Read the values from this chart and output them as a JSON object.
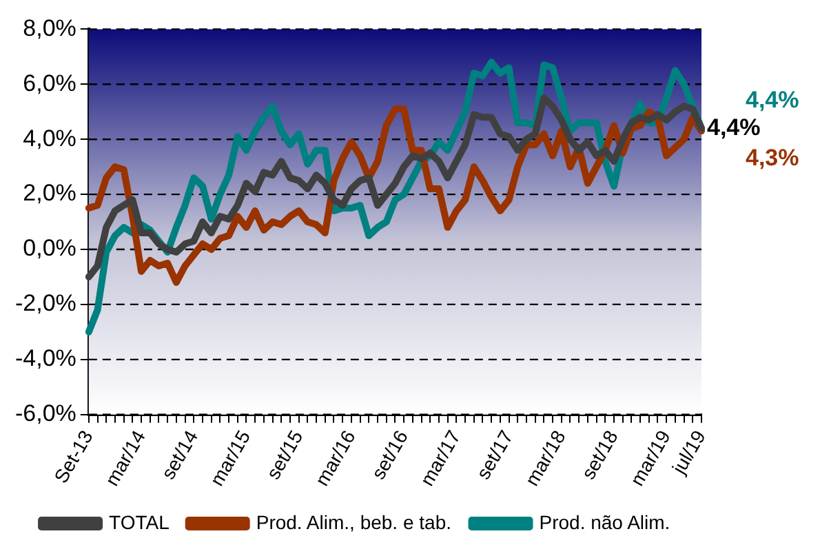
{
  "chart_data": {
    "type": "line",
    "categories": [
      "Set-13",
      null,
      null,
      null,
      null,
      null,
      "mar/14",
      null,
      null,
      null,
      null,
      null,
      "set/14",
      null,
      null,
      null,
      null,
      null,
      "mar/15",
      null,
      null,
      null,
      null,
      null,
      "set/15",
      null,
      null,
      null,
      null,
      null,
      "mar/16",
      null,
      null,
      null,
      null,
      null,
      "set/16",
      null,
      null,
      null,
      null,
      null,
      "mar/17",
      null,
      null,
      null,
      null,
      null,
      "set/17",
      null,
      null,
      null,
      null,
      null,
      "mar/18",
      null,
      null,
      null,
      null,
      null,
      "set/18",
      null,
      null,
      null,
      null,
      null,
      "mar/19",
      null,
      null,
      null,
      "jul/19"
    ],
    "series": [
      {
        "name": "TOTAL",
        "color": "#404040",
        "values": [
          -1.0,
          -0.6,
          0.8,
          1.4,
          1.6,
          1.8,
          0.6,
          0.6,
          0.2,
          0.0,
          -0.1,
          0.2,
          0.3,
          1.0,
          0.6,
          1.2,
          1.1,
          1.6,
          2.4,
          2.1,
          2.8,
          2.7,
          3.2,
          2.6,
          2.5,
          2.2,
          2.7,
          2.4,
          1.8,
          1.6,
          2.2,
          2.5,
          2.6,
          1.6,
          2.0,
          2.4,
          3.0,
          3.4,
          3.3,
          3.5,
          3.2,
          2.6,
          3.2,
          3.8,
          4.9,
          4.8,
          4.8,
          4.2,
          4.1,
          3.6,
          4.0,
          4.2,
          5.5,
          5.2,
          4.7,
          4.0,
          3.6,
          3.9,
          3.4,
          3.6,
          3.2,
          4.0,
          4.6,
          4.8,
          4.7,
          4.9,
          4.7,
          5.0,
          5.2,
          5.1,
          4.4
        ],
        "value_labels": [
          null,
          null,
          null,
          null,
          null,
          null,
          null,
          null,
          null,
          null,
          null,
          null,
          null,
          null,
          null,
          null,
          null,
          null,
          null,
          null,
          null,
          null,
          null,
          null,
          null,
          null,
          null,
          null,
          null,
          null,
          null,
          null,
          null,
          null,
          null,
          null,
          null,
          null,
          null,
          null,
          null,
          null,
          null,
          null,
          null,
          null,
          null,
          null,
          null,
          null,
          null,
          null,
          null,
          null,
          null,
          null,
          null,
          null,
          null,
          null,
          null,
          null,
          null,
          null,
          null,
          null,
          null,
          null,
          null,
          null,
          "4,4%"
        ]
      },
      {
        "name": "Prod. Alim., beb. e tab.",
        "color": "#993300",
        "values": [
          1.5,
          1.6,
          2.6,
          3.0,
          2.9,
          1.2,
          -0.8,
          -0.4,
          -0.6,
          -0.5,
          -1.2,
          -0.6,
          -0.2,
          0.2,
          0.0,
          0.4,
          0.5,
          1.2,
          0.8,
          1.4,
          0.7,
          1.0,
          0.9,
          1.2,
          1.4,
          1.0,
          0.9,
          0.6,
          2.5,
          3.3,
          3.9,
          3.4,
          2.6,
          3.2,
          4.5,
          5.1,
          5.1,
          3.6,
          3.6,
          2.2,
          2.2,
          0.8,
          1.4,
          1.8,
          3.0,
          2.5,
          1.9,
          1.4,
          1.8,
          3.0,
          3.8,
          3.8,
          4.2,
          3.4,
          4.3,
          3.0,
          3.7,
          2.4,
          3.0,
          3.6,
          4.5,
          3.5,
          4.4,
          4.5,
          5.0,
          4.8,
          3.4,
          3.7,
          4.0,
          4.8,
          4.3
        ],
        "value_labels": [
          null,
          null,
          null,
          null,
          null,
          null,
          null,
          null,
          null,
          null,
          null,
          null,
          null,
          null,
          null,
          null,
          null,
          null,
          null,
          null,
          null,
          null,
          null,
          null,
          null,
          null,
          null,
          null,
          null,
          null,
          null,
          null,
          null,
          null,
          null,
          null,
          null,
          null,
          null,
          null,
          null,
          null,
          null,
          null,
          null,
          null,
          null,
          null,
          null,
          null,
          null,
          null,
          null,
          null,
          null,
          null,
          null,
          null,
          null,
          null,
          null,
          null,
          null,
          null,
          null,
          null,
          null,
          null,
          null,
          null,
          "4,3%"
        ]
      },
      {
        "name": "Prod. não Alim.",
        "color": "#008080",
        "values": [
          -3.0,
          -2.2,
          -0.1,
          0.5,
          0.8,
          0.6,
          0.9,
          0.7,
          0.3,
          -0.1,
          0.8,
          1.6,
          2.6,
          2.3,
          1.1,
          2.0,
          2.7,
          4.1,
          3.6,
          4.3,
          4.8,
          5.2,
          4.3,
          3.8,
          4.2,
          3.1,
          3.6,
          3.6,
          1.4,
          1.5,
          1.5,
          1.6,
          0.5,
          0.8,
          1.0,
          1.8,
          2.0,
          2.6,
          3.2,
          3.4,
          3.9,
          3.6,
          4.3,
          5.0,
          6.4,
          6.3,
          6.8,
          6.4,
          6.6,
          4.6,
          4.6,
          4.5,
          6.7,
          6.6,
          5.5,
          4.3,
          4.6,
          4.6,
          4.6,
          3.2,
          2.3,
          3.8,
          4.6,
          5.3,
          4.6,
          4.6,
          5.5,
          6.5,
          6.0,
          5.2,
          4.4
        ],
        "value_labels": [
          null,
          null,
          null,
          null,
          null,
          null,
          null,
          null,
          null,
          null,
          null,
          null,
          null,
          null,
          null,
          null,
          null,
          null,
          null,
          null,
          null,
          null,
          null,
          null,
          null,
          null,
          null,
          null,
          null,
          null,
          null,
          null,
          null,
          null,
          null,
          null,
          null,
          null,
          null,
          null,
          null,
          null,
          null,
          null,
          null,
          null,
          null,
          null,
          null,
          null,
          null,
          null,
          null,
          null,
          null,
          null,
          null,
          null,
          null,
          null,
          null,
          null,
          null,
          null,
          null,
          null,
          null,
          null,
          null,
          null,
          "4,4%"
        ]
      }
    ],
    "ylim": [
      -6,
      8
    ],
    "yticks": [
      {
        "value": -6,
        "label": "-6,0%"
      },
      {
        "value": -4,
        "label": "-4,0%"
      },
      {
        "value": -2,
        "label": "-2,0%"
      },
      {
        "value": 0,
        "label": "0,0%"
      },
      {
        "value": 2,
        "label": "2,0%"
      },
      {
        "value": 4,
        "label": "4,0%"
      },
      {
        "value": 6,
        "label": "6,0%"
      },
      {
        "value": 8,
        "label": "8,0%"
      }
    ],
    "grid": "y",
    "legend": "bottom",
    "marker": "none",
    "line_style": "solid"
  }
}
